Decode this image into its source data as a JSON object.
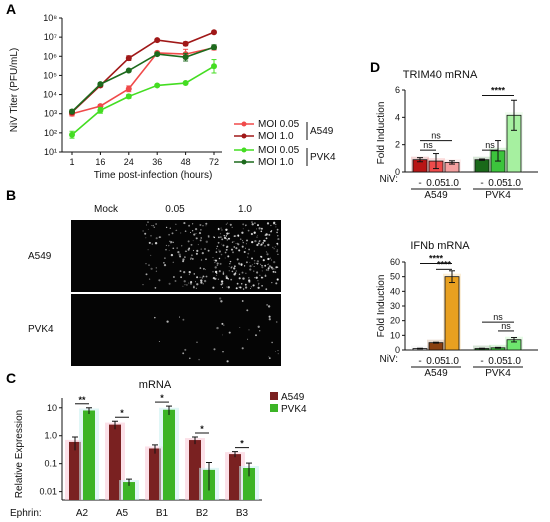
{
  "panelA": {
    "letter": "A",
    "ylabel": "NiV Titer (PFU/mL)",
    "xlabel": "Time post-infection (hours)",
    "legend": {
      "entries": [
        "MOI 0.05",
        "MOI 1.0",
        "MOI 0.05",
        "MOI 1.0"
      ],
      "groups": [
        "A549",
        "PVK4"
      ]
    }
  },
  "panelB": {
    "letter": "B",
    "columns": [
      "Mock",
      "0.05",
      "1.0"
    ],
    "rows": [
      "A549",
      "PVK4"
    ]
  },
  "panelC": {
    "letter": "C",
    "title": "mRNA",
    "ylabel": "Relative Expression",
    "xprefix": "Ephrin:",
    "legend": [
      "A549",
      "PVK4"
    ]
  },
  "panelD": {
    "letter": "D",
    "trim_title": "TRIM40 mRNA",
    "ifn_title": "IFNb mRNA",
    "ylabel": "Fold Induction",
    "niv_label": "NiV:",
    "doses": [
      "-",
      "0.05",
      "1.0"
    ],
    "groups": [
      "A549",
      "PVK4"
    ]
  },
  "chart_data": [
    {
      "type": "line",
      "id": "A",
      "x": [
        1,
        16,
        24,
        36,
        48,
        72
      ],
      "xticks": [
        "1",
        "16",
        "24",
        "36",
        "48",
        "72"
      ],
      "yscale": "log",
      "ylim": [
        10,
        100000000
      ],
      "yticks": [
        "10¹",
        "10²",
        "10³",
        "10⁴",
        "10⁵",
        "10⁶",
        "10⁷",
        "10⁸"
      ],
      "ylabel": "NiV Titer (PFU/mL)",
      "xlabel": "Time post-infection (hours)",
      "series": [
        {
          "name": "MOI 0.05",
          "group": "A549",
          "color": "#f04a4a",
          "values": [
            1000,
            2500,
            20000,
            1500000,
            1300000,
            2800000
          ],
          "errors": [
            0.12,
            0.08,
            0.15,
            0.06,
            0.25,
            0.12
          ]
        },
        {
          "name": "MOI 1.0",
          "group": "A549",
          "color": "#a01818",
          "values": [
            1200,
            30000,
            800000,
            7000000,
            4500000,
            18000000
          ],
          "errors": [
            0.1,
            0.08,
            0.12,
            0.05,
            0.1,
            0.06
          ]
        },
        {
          "name": "MOI 0.05",
          "group": "PVK4",
          "color": "#44dd22",
          "values": [
            80,
            1500,
            8000,
            30000,
            40000,
            300000
          ],
          "errors": [
            0.18,
            0.15,
            0.1,
            0.05,
            0.05,
            0.35
          ]
        },
        {
          "name": "MOI 1.0",
          "group": "PVK4",
          "color": "#1d6a1d",
          "values": [
            1300,
            35000,
            180000,
            1300000,
            900000,
            3000000
          ],
          "errors": [
            0.1,
            0.08,
            0.06,
            0.06,
            0.2,
            0.12
          ]
        }
      ]
    },
    {
      "type": "bar",
      "id": "C",
      "title": "mRNA",
      "ylabel": "Relative Expression",
      "yscale": "log",
      "ylim": [
        0.01,
        10
      ],
      "yticks": [
        "0.01",
        "0.1",
        "1.0",
        "10"
      ],
      "categories": [
        "A2",
        "A5",
        "B1",
        "B2",
        "B3"
      ],
      "series": [
        {
          "name": "A549",
          "color": "#7a2121",
          "values": [
            0.6,
            2.5,
            0.35,
            0.7,
            0.22
          ],
          "errors": [
            0.3,
            0.8,
            0.12,
            0.2,
            0.05
          ]
        },
        {
          "name": "PVK4",
          "color": "#3cb426",
          "values": [
            8.0,
            0.022,
            8.5,
            0.06,
            0.07
          ],
          "errors": [
            2.0,
            0.006,
            3.0,
            0.05,
            0.035
          ]
        }
      ],
      "significance": [
        {
          "category": "A2",
          "label": "**"
        },
        {
          "category": "A5",
          "label": "*"
        },
        {
          "category": "B1",
          "label": "*"
        },
        {
          "category": "B2",
          "label": "*"
        },
        {
          "category": "B3",
          "label": "*"
        }
      ]
    },
    {
      "type": "bar",
      "id": "D-TRIM40",
      "title": "TRIM40 mRNA",
      "ylabel": "Fold Induction",
      "ylim": [
        0,
        6
      ],
      "yticks": [
        "0",
        "2",
        "4",
        "6"
      ],
      "categories": [
        "A549 -",
        "A549 0.05",
        "A549 1.0",
        "PVK4 -",
        "PVK4 0.05",
        "PVK4 1.0"
      ],
      "values": [
        0.9,
        0.8,
        0.7,
        0.9,
        1.55,
        4.15
      ],
      "errors": [
        0.15,
        0.55,
        0.12,
        0.05,
        0.75,
        1.1
      ],
      "colors": [
        "#b81515",
        "#ee4b4b",
        "#f4a0a0",
        "#196919",
        "#3cc43c",
        "#a6f0a0"
      ],
      "comparisons": [
        {
          "from": 0,
          "to": 1,
          "label": "ns",
          "level": 1.6
        },
        {
          "from": 0,
          "to": 2,
          "label": "ns",
          "level": 2.3
        },
        {
          "from": 3,
          "to": 4,
          "label": "ns",
          "level": 1.6
        },
        {
          "from": 3,
          "to": 5,
          "label": "****",
          "level": 5.6
        }
      ]
    },
    {
      "type": "bar",
      "id": "D-IFNb",
      "title": "IFNb mRNA",
      "ylabel": "Fold Induction",
      "ylim": [
        0,
        60
      ],
      "yticks": [
        "0",
        "10",
        "20",
        "30",
        "40",
        "50",
        "60"
      ],
      "categories": [
        "A549 -",
        "A549 0.05",
        "A549 1.0",
        "PVK4 -",
        "PVK4 0.05",
        "PVK4 1.0"
      ],
      "values": [
        1,
        5,
        50,
        1,
        1.5,
        7
      ],
      "errors": [
        0.2,
        0.3,
        4,
        0.2,
        0.3,
        1.5
      ],
      "colors": [
        "#d9d9d9",
        "#8a4010",
        "#e8a020",
        "#1d6a1d",
        "#3cc43c",
        "#6ee66e"
      ],
      "comparisons": [
        {
          "from": 0,
          "to": 2,
          "label": "****",
          "level": 59
        },
        {
          "from": 1,
          "to": 2,
          "label": "****",
          "level": 55
        },
        {
          "from": 3,
          "to": 5,
          "label": "ns",
          "level": 19
        },
        {
          "from": 4,
          "to": 5,
          "label": "ns",
          "level": 13
        }
      ]
    }
  ]
}
